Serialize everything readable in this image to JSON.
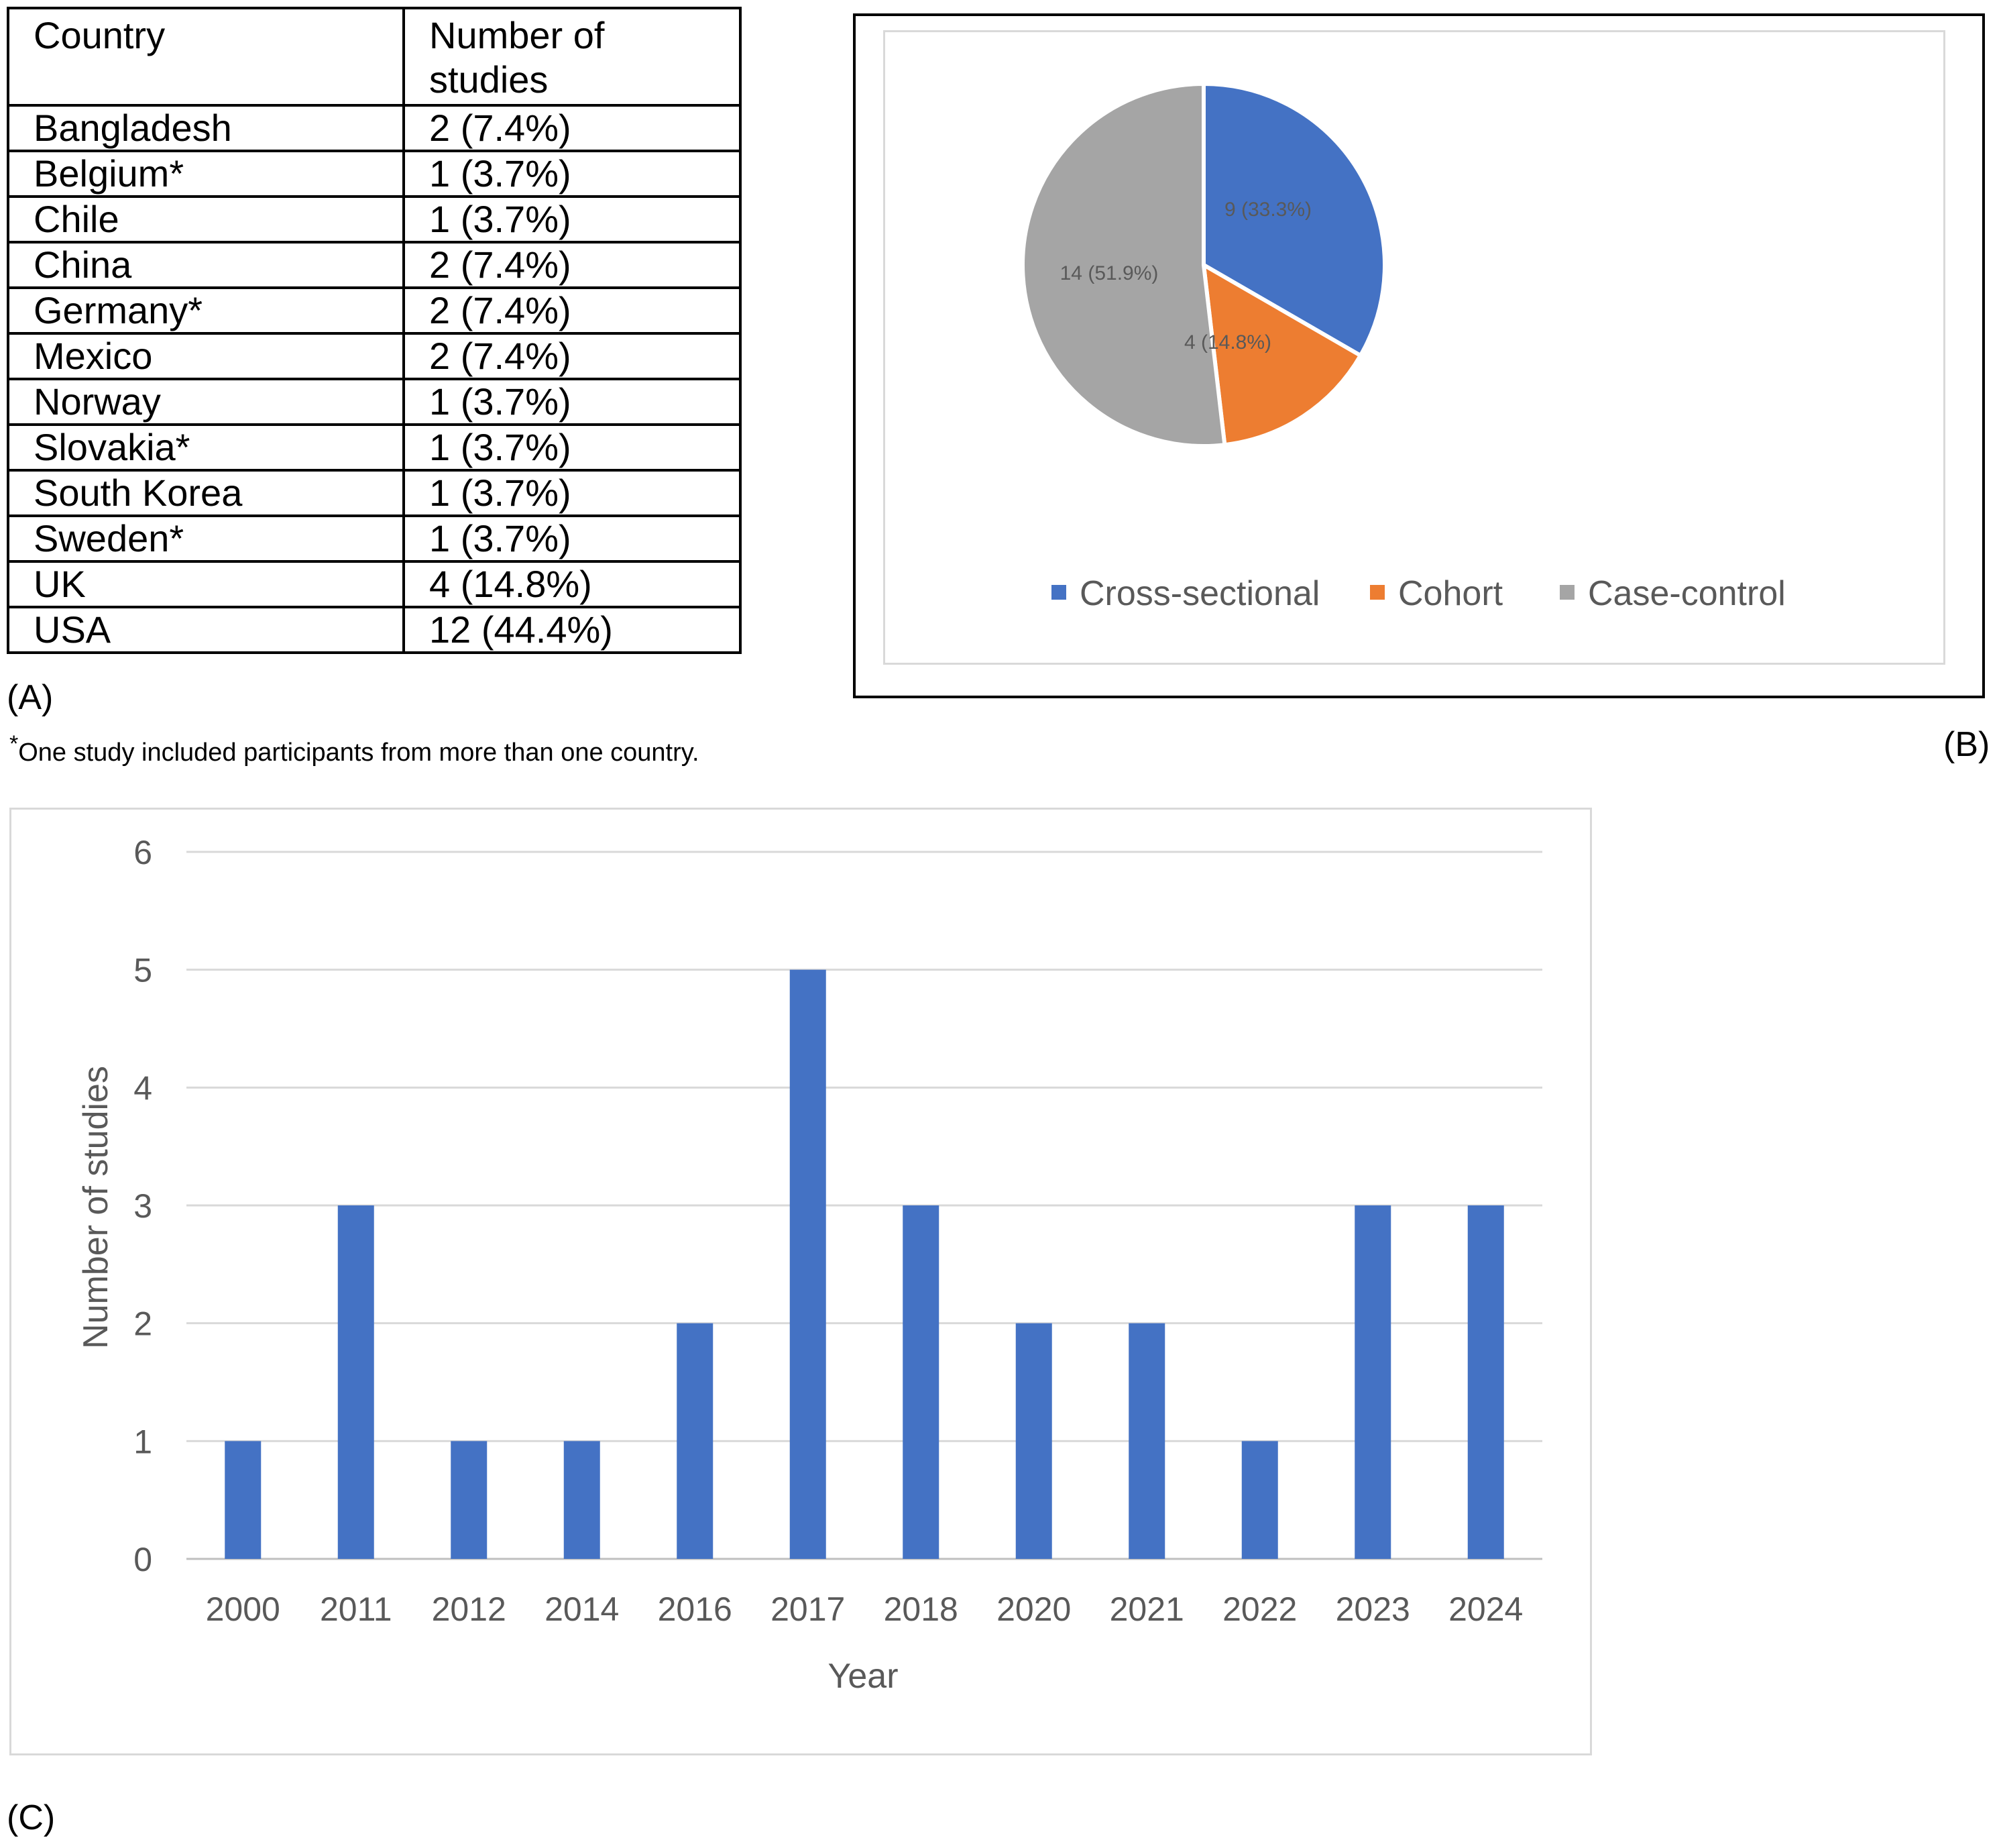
{
  "panel_a": {
    "label": "(A)",
    "headers": [
      "Country",
      "Number of studies"
    ],
    "header_lines": [
      [
        "Country"
      ],
      [
        "Number of",
        "studies"
      ]
    ],
    "rows": [
      {
        "country": "Bangladesh",
        "studies": "2 (7.4%)"
      },
      {
        "country": "Belgium*",
        "studies": "1 (3.7%)"
      },
      {
        "country": "Chile",
        "studies": "1 (3.7%)"
      },
      {
        "country": "China",
        "studies": "2 (7.4%)"
      },
      {
        "country": "Germany*",
        "studies": "2 (7.4%)"
      },
      {
        "country": "Mexico",
        "studies": "2 (7.4%)"
      },
      {
        "country": "Norway",
        "studies": "1 (3.7%)"
      },
      {
        "country": "Slovakia*",
        "studies": "1 (3.7%)"
      },
      {
        "country": "South Korea",
        "studies": "1 (3.7%)"
      },
      {
        "country": "Sweden*",
        "studies": "1 (3.7%)"
      },
      {
        "country": "UK",
        "studies": "4 (14.8%)"
      },
      {
        "country": "USA",
        "studies": "12 (44.4%)"
      }
    ],
    "footnote_mark": "*",
    "footnote": "One study included participants from more than one country."
  },
  "panel_b": {
    "label": "(B)"
  },
  "panel_c": {
    "label": "(C)"
  },
  "chart_data": [
    {
      "type": "pie",
      "slices": [
        {
          "name": "Cross-sectional",
          "value": 9,
          "label": "9 (33.3%)",
          "color": "#4472c4"
        },
        {
          "name": "Cohort",
          "value": 4,
          "label": "4 (14.8%)",
          "color": "#ed7d31"
        },
        {
          "name": "Case-control",
          "value": 14,
          "label": "14 (51.9%)",
          "color": "#a5a5a5"
        }
      ],
      "legend_position": "bottom"
    },
    {
      "type": "bar",
      "categories": [
        "2000",
        "2011",
        "2012",
        "2014",
        "2016",
        "2017",
        "2018",
        "2020",
        "2021",
        "2022",
        "2023",
        "2024"
      ],
      "values": [
        1,
        3,
        1,
        1,
        2,
        5,
        3,
        2,
        2,
        1,
        3,
        3
      ],
      "xlabel": "Year",
      "ylabel": "Number of studies",
      "ylim": [
        0,
        6
      ],
      "yticks": [
        0,
        1,
        2,
        3,
        4,
        5,
        6
      ],
      "color": "#4472c4",
      "grid": true
    }
  ]
}
